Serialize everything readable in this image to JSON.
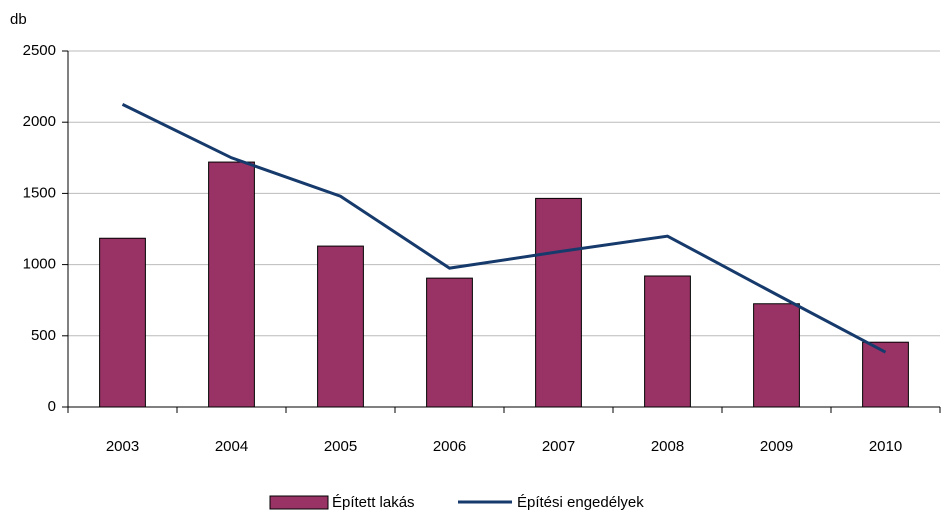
{
  "chart_data": {
    "type": "bar",
    "y_label": "db",
    "categories": [
      "2003",
      "2004",
      "2005",
      "2006",
      "2007",
      "2008",
      "2009",
      "2010"
    ],
    "series": [
      {
        "name": "Épített lakás",
        "type": "bar",
        "color": "#993366",
        "values": [
          1185,
          1720,
          1130,
          905,
          1465,
          920,
          725,
          455
        ]
      },
      {
        "name": "Építési engedélyek",
        "type": "line",
        "color": "#163a6b",
        "values": [
          2125,
          1750,
          1480,
          975,
          1090,
          1200,
          790,
          385
        ]
      }
    ],
    "ylim": [
      0,
      2500
    ],
    "yticks": [
      0,
      500,
      1000,
      1500,
      2000,
      2500
    ],
    "grid": true
  }
}
